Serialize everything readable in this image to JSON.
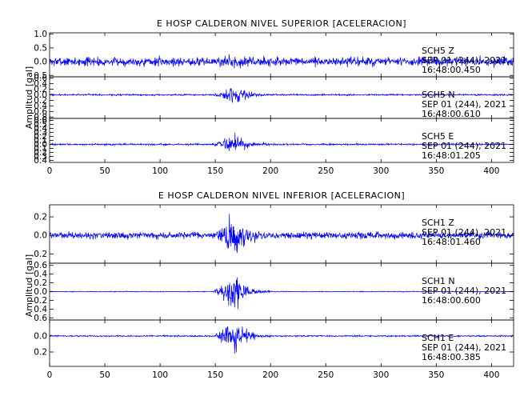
{
  "chart_data": [
    {
      "type": "line",
      "title": "E HOSP CALDERON NIVEL SUPERIOR [ACELERACION]",
      "ylabel": "Amplitud [gal]",
      "xlim": [
        0,
        420
      ],
      "xticks": [
        0,
        50,
        100,
        150,
        200,
        250,
        300,
        350,
        400
      ],
      "series_color": "#0000ff",
      "channels": [
        {
          "name": "SCH5 Z",
          "annotation": [
            "SCH5   Z",
            "SEP 01 (244), 2021",
            "16:48:00.450"
          ],
          "ylim": [
            -0.55,
            1.05
          ],
          "yticks": [
            -0.5,
            0.0,
            0.5,
            1.0
          ],
          "ytick_labels": [
            "0.5",
            "0.0",
            "0.5",
            "1.0"
          ],
          "noise": 0.22,
          "burst": 0.12
        },
        {
          "name": "SCH5 N",
          "annotation": [
            "SCH5   N",
            "SEP 01 (244), 2021",
            "16:48:00.610"
          ],
          "ylim": [
            -0.85,
            0.65
          ],
          "yticks": [
            -0.8,
            -0.6,
            -0.4,
            -0.2,
            0.0,
            0.2,
            0.4,
            0.6
          ],
          "ytick_labels": [
            "0.8",
            "0.6",
            "0.4",
            "0.2",
            "0.0",
            "0.2",
            "0.4",
            "0.6"
          ],
          "noise": 0.04,
          "burst": 0.45
        },
        {
          "name": "SCH5 E",
          "annotation": [
            "SCH5   E",
            "SEP 01 (244), 2021",
            "16:48:01.205"
          ],
          "ylim": [
            -0.45,
            0.65
          ],
          "yticks": [
            -0.4,
            -0.3,
            -0.2,
            -0.1,
            0.0,
            0.1,
            0.2,
            0.3,
            0.4,
            0.5,
            0.6
          ],
          "ytick_labels": [
            "0.4",
            "0.3",
            "0.2",
            "0.1",
            "0.0",
            "0.1",
            "0.2",
            "0.3",
            "0.4",
            "0.5",
            "0.6"
          ],
          "noise": 0.03,
          "burst": 0.3
        }
      ]
    },
    {
      "type": "line",
      "title": "E HOSP CALDERON NIVEL INFERIOR [ACELERACION]",
      "ylabel": "Amplitud [gal]",
      "xlim": [
        0,
        420
      ],
      "xticks": [
        0,
        50,
        100,
        150,
        200,
        250,
        300,
        350,
        400
      ],
      "series_color": "#0000ff",
      "channels": [
        {
          "name": "SCH1 Z",
          "annotation": [
            "SCH1   Z",
            "SEP 01 (244), 2021",
            "16:48:01.460"
          ],
          "ylim": [
            -0.3,
            0.33
          ],
          "yticks": [
            -0.2,
            0.0,
            0.2
          ],
          "ytick_labels": [
            "0.2",
            "0.0",
            "0.2"
          ],
          "noise": 0.05,
          "burst": 0.22
        },
        {
          "name": "SCH1 N",
          "annotation": [
            "SCH1   N",
            "SEP 01 (244), 2021",
            "16:48:00.600"
          ],
          "ylim": [
            -0.65,
            0.65
          ],
          "yticks": [
            -0.6,
            -0.4,
            -0.2,
            0.0,
            0.2,
            0.4,
            0.6
          ],
          "ytick_labels": [
            "0.6",
            "0.4",
            "0.2",
            "0.0",
            "0.2",
            "0.4",
            "0.6"
          ],
          "noise": 0.012,
          "burst": 0.55
        },
        {
          "name": "SCH1 E",
          "annotation": [
            "SCH1   E",
            "SEP 01 (244), 2021",
            "16:48:00.385"
          ],
          "ylim": [
            -0.38,
            0.2
          ],
          "yticks": [
            -0.2,
            0.0
          ],
          "ytick_labels": [
            "0.2",
            "0.0"
          ],
          "noise": 0.012,
          "burst": 0.3
        }
      ]
    }
  ]
}
